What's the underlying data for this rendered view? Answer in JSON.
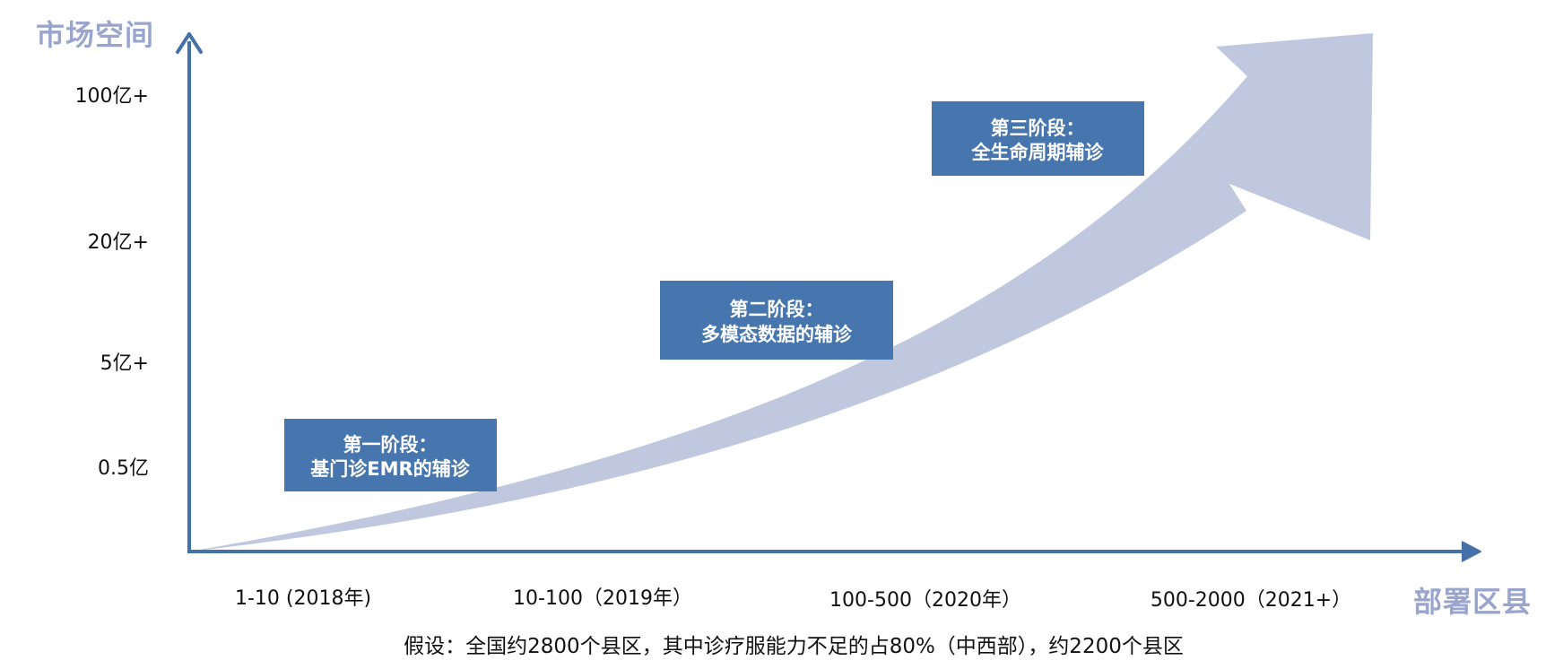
{
  "chart_data": {
    "type": "area",
    "ylabel": "市场空间",
    "xlabel": "部署区县",
    "x_categories": [
      "1-10 (2018年)",
      "10-100（2019年）",
      "100-500（2020年）",
      "500-2000（2021+）"
    ],
    "y_ticks": [
      "100亿+",
      "20亿+",
      "5亿+",
      "0.5亿"
    ],
    "stages": [
      {
        "line1": "第一阶段：",
        "line2": "基门诊EMR的辅诊"
      },
      {
        "line1": "第二阶段：",
        "line2": "多模态数据的辅诊"
      },
      {
        "line1": "第三阶段：",
        "line2": "全生命周期辅诊"
      }
    ],
    "note": "假设：全国约2800个县区，其中诊疗服能力不足的占80%（中西部），约2200个县区"
  },
  "colors": {
    "axis": "#4472A8",
    "arrow": "#C0C8E0",
    "box": "#4676AD",
    "title": "#9AA5CD"
  }
}
